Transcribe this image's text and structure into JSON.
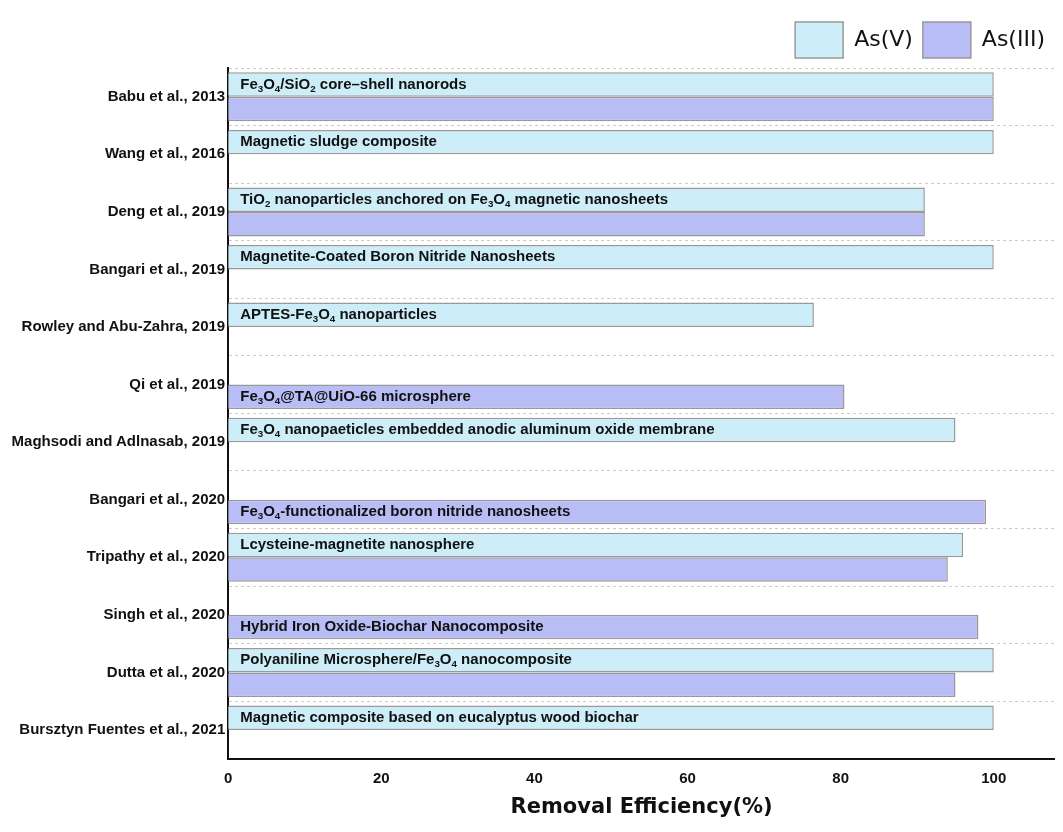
{
  "chart_data": {
    "type": "bar",
    "orientation": "horizontal",
    "xlabel": "Removal Efficiency(%)",
    "categories": [
      "Babu et al., 2013",
      "Wang et al., 2016",
      "Deng et al., 2019",
      "Bangari et al., 2019",
      "Rowley and Abu-Zahra, 2019",
      "Qi et al., 2019",
      "Maghsodi and Adlnasab, 2019",
      "Bangari et al., 2020",
      "Tripathy et al., 2020",
      "Singh et al., 2020",
      "Dutta et al., 2020",
      "Bursztyn Fuentes et al., 2021"
    ],
    "series": [
      {
        "name": "As(V)",
        "color": "#cdeef8",
        "values": [
          100,
          100,
          91,
          100,
          76.5,
          null,
          95,
          null,
          96,
          null,
          100,
          100
        ]
      },
      {
        "name": "As(III)",
        "color": "#b8bdf5",
        "values": [
          100,
          null,
          91,
          null,
          null,
          80.5,
          null,
          99,
          94,
          98,
          95,
          null
        ]
      }
    ],
    "xlim": [
      0,
      108
    ],
    "xticks": [
      0,
      20,
      40,
      60,
      80,
      100
    ],
    "grid": "y",
    "legend": "top right",
    "annotations": [
      {
        "text": "Fe$_{3}$O$_{4}$/SiO$_{2}$ core–shell nanorods",
        "y": "Babu et al., 2013"
      },
      {
        "text": "Magnetic sludge composite",
        "y": "Wang et al., 2016"
      },
      {
        "text": "TiO$_{2}$ nanoparticles anchored on Fe$_{3}$O$_{4}$ magnetic nanosheets",
        "y": "Deng et al., 2019"
      },
      {
        "text": "Magnetite-Coated Boron Nitride Nanosheets",
        "y": "Bangari et al., 2019"
      },
      {
        "text": "APTES-Fe$_{3}$O$_{4}$ nanoparticles",
        "y": "Rowley and Abu-Zahra, 2019"
      },
      {
        "text": "Fe$_{3}$O$_{4}$@TA@UiO-66 microsphere",
        "y": "Qi et al., 2019"
      },
      {
        "text": "Fe$_{3}$O$_{4}$ nanopaeticles embedded anodic aluminum oxide membrane",
        "y": "Maghsodi and Adlnasab, 2019"
      },
      {
        "text": "Fe$_{3}$O$_{4}$-functionalized boron nitride nanosheets",
        "y": "Bangari et al., 2020"
      },
      {
        "text": "Lcysteine-magnetite nanosphere",
        "y": "Tripathy et al., 2020"
      },
      {
        "text": "Hybrid Iron Oxide-Biochar Nanocomposite",
        "y": "Singh et al., 2020"
      },
      {
        "text": "Polyaniline Microsphere/Fe$_{3}$O$_{4}$ nanocomposite",
        "y": "Dutta et al., 2020"
      },
      {
        "text": "Magnetic composite based on eucalyptus wood biochar",
        "y": "Bursztyn Fuentes et al., 2021"
      }
    ]
  }
}
